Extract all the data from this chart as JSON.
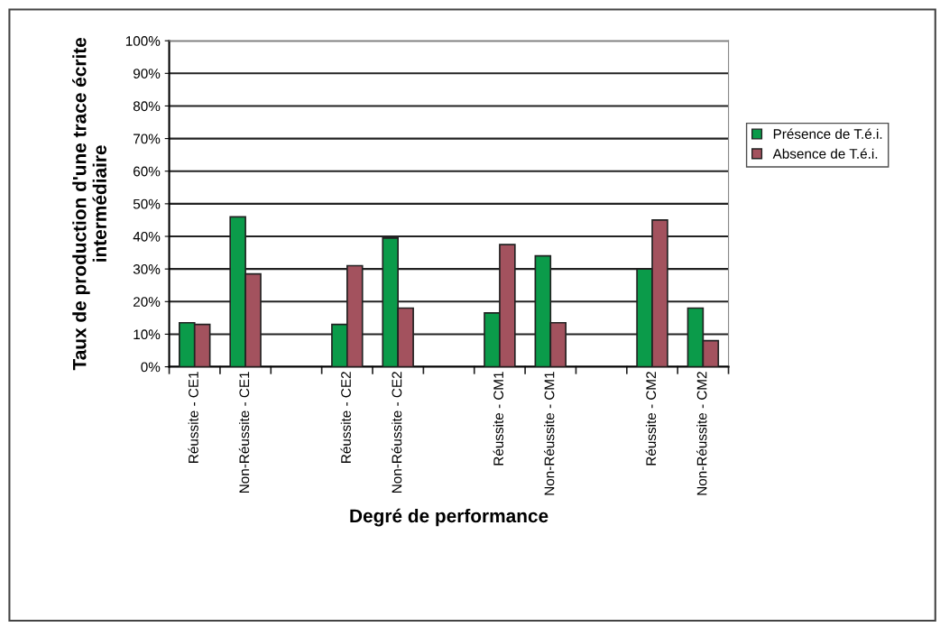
{
  "chart_data": {
    "type": "bar",
    "xlabel": "Degré de performance",
    "ylabel": "Taux de production d'une trace écrite intermédiaire",
    "categories": [
      "Réussite - CE1",
      "Non-Réussite - CE1",
      null,
      "Réussite - CE2",
      "Non-Réussite - CE2",
      null,
      "Réussite - CM1",
      "Non-Réussite - CM1",
      null,
      "Réussite - CM2",
      "Non-Réussite - CM2"
    ],
    "series": [
      {
        "name": "Présence de T.é.i.",
        "color": "#0b9b4a",
        "values": [
          13.5,
          46,
          null,
          13,
          39.5,
          null,
          16.5,
          34,
          null,
          30,
          18
        ]
      },
      {
        "name": "Absence de T.é.i.",
        "color": "#a3525e",
        "values": [
          13,
          28.5,
          null,
          31,
          18,
          null,
          37.5,
          13.5,
          null,
          45,
          8
        ]
      }
    ],
    "ylim": [
      0,
      100
    ],
    "yticks": [
      {
        "value": 0,
        "label": "0%"
      },
      {
        "value": 10,
        "label": "10%"
      },
      {
        "value": 20,
        "label": "20%"
      },
      {
        "value": 30,
        "label": "30%"
      },
      {
        "value": 40,
        "label": "40%"
      },
      {
        "value": 50,
        "label": "50%"
      },
      {
        "value": 60,
        "label": "60%"
      },
      {
        "value": 70,
        "label": "70%"
      },
      {
        "value": 80,
        "label": "80%"
      },
      {
        "value": 90,
        "label": "90%"
      },
      {
        "value": 100,
        "label": "100%"
      }
    ],
    "grid": "y",
    "legend": "right"
  }
}
